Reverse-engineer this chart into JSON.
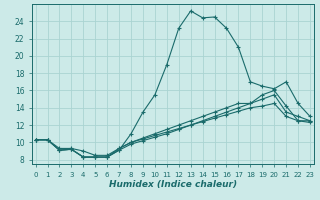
{
  "xlabel": "Humidex (Indice chaleur)",
  "background_color": "#cceae8",
  "grid_color": "#aad4d2",
  "line_color": "#1a6b6b",
  "xlim": [
    -0.3,
    23.3
  ],
  "ylim": [
    7.5,
    26.0
  ],
  "xticks": [
    0,
    1,
    2,
    3,
    4,
    5,
    6,
    7,
    8,
    9,
    10,
    11,
    12,
    13,
    14,
    15,
    16,
    17,
    18,
    19,
    20,
    21,
    22,
    23
  ],
  "yticks": [
    8,
    10,
    12,
    14,
    16,
    18,
    20,
    22,
    24
  ],
  "line1_x": [
    0,
    1,
    2,
    3,
    4,
    5,
    6,
    7,
    8,
    9,
    10,
    11,
    12,
    13,
    14,
    15,
    16,
    17,
    18,
    19,
    20,
    21,
    22,
    23
  ],
  "line1_y": [
    10.3,
    10.3,
    9.1,
    9.2,
    8.3,
    8.3,
    8.3,
    9.1,
    11.0,
    13.5,
    15.5,
    19.0,
    23.2,
    25.2,
    24.4,
    24.5,
    23.2,
    21.0,
    17.0,
    16.5,
    16.2,
    17.0,
    14.5,
    13.0
  ],
  "line2_x": [
    0,
    1,
    2,
    3,
    4,
    5,
    6,
    7,
    8,
    9,
    10,
    11,
    12,
    13,
    14,
    15,
    16,
    17,
    18,
    19,
    20,
    21,
    22,
    23
  ],
  "line2_y": [
    10.3,
    10.3,
    9.1,
    9.2,
    8.3,
    8.3,
    8.3,
    9.1,
    9.8,
    10.2,
    10.6,
    11.0,
    11.5,
    12.0,
    12.5,
    13.0,
    13.5,
    14.0,
    14.5,
    15.0,
    15.5,
    13.5,
    13.0,
    12.5
  ],
  "line3_x": [
    0,
    1,
    2,
    3,
    4,
    5,
    6,
    7,
    8,
    9,
    10,
    11,
    12,
    13,
    14,
    15,
    16,
    17,
    18,
    19,
    20,
    21,
    22,
    23
  ],
  "line3_y": [
    10.3,
    10.3,
    9.1,
    9.2,
    8.3,
    8.3,
    8.3,
    9.3,
    10.0,
    10.5,
    11.0,
    11.5,
    12.0,
    12.5,
    13.0,
    13.5,
    14.0,
    14.5,
    14.5,
    15.5,
    16.0,
    14.2,
    12.5,
    12.5
  ],
  "line4_x": [
    0,
    1,
    2,
    3,
    4,
    5,
    6,
    7,
    8,
    9,
    10,
    11,
    12,
    13,
    14,
    15,
    16,
    17,
    18,
    19,
    20,
    21,
    22,
    23
  ],
  "line4_y": [
    10.3,
    10.3,
    9.3,
    9.3,
    9.0,
    8.5,
    8.5,
    9.3,
    10.0,
    10.4,
    10.8,
    11.2,
    11.6,
    12.0,
    12.4,
    12.8,
    13.2,
    13.6,
    14.0,
    14.2,
    14.5,
    13.0,
    12.5,
    12.3
  ]
}
